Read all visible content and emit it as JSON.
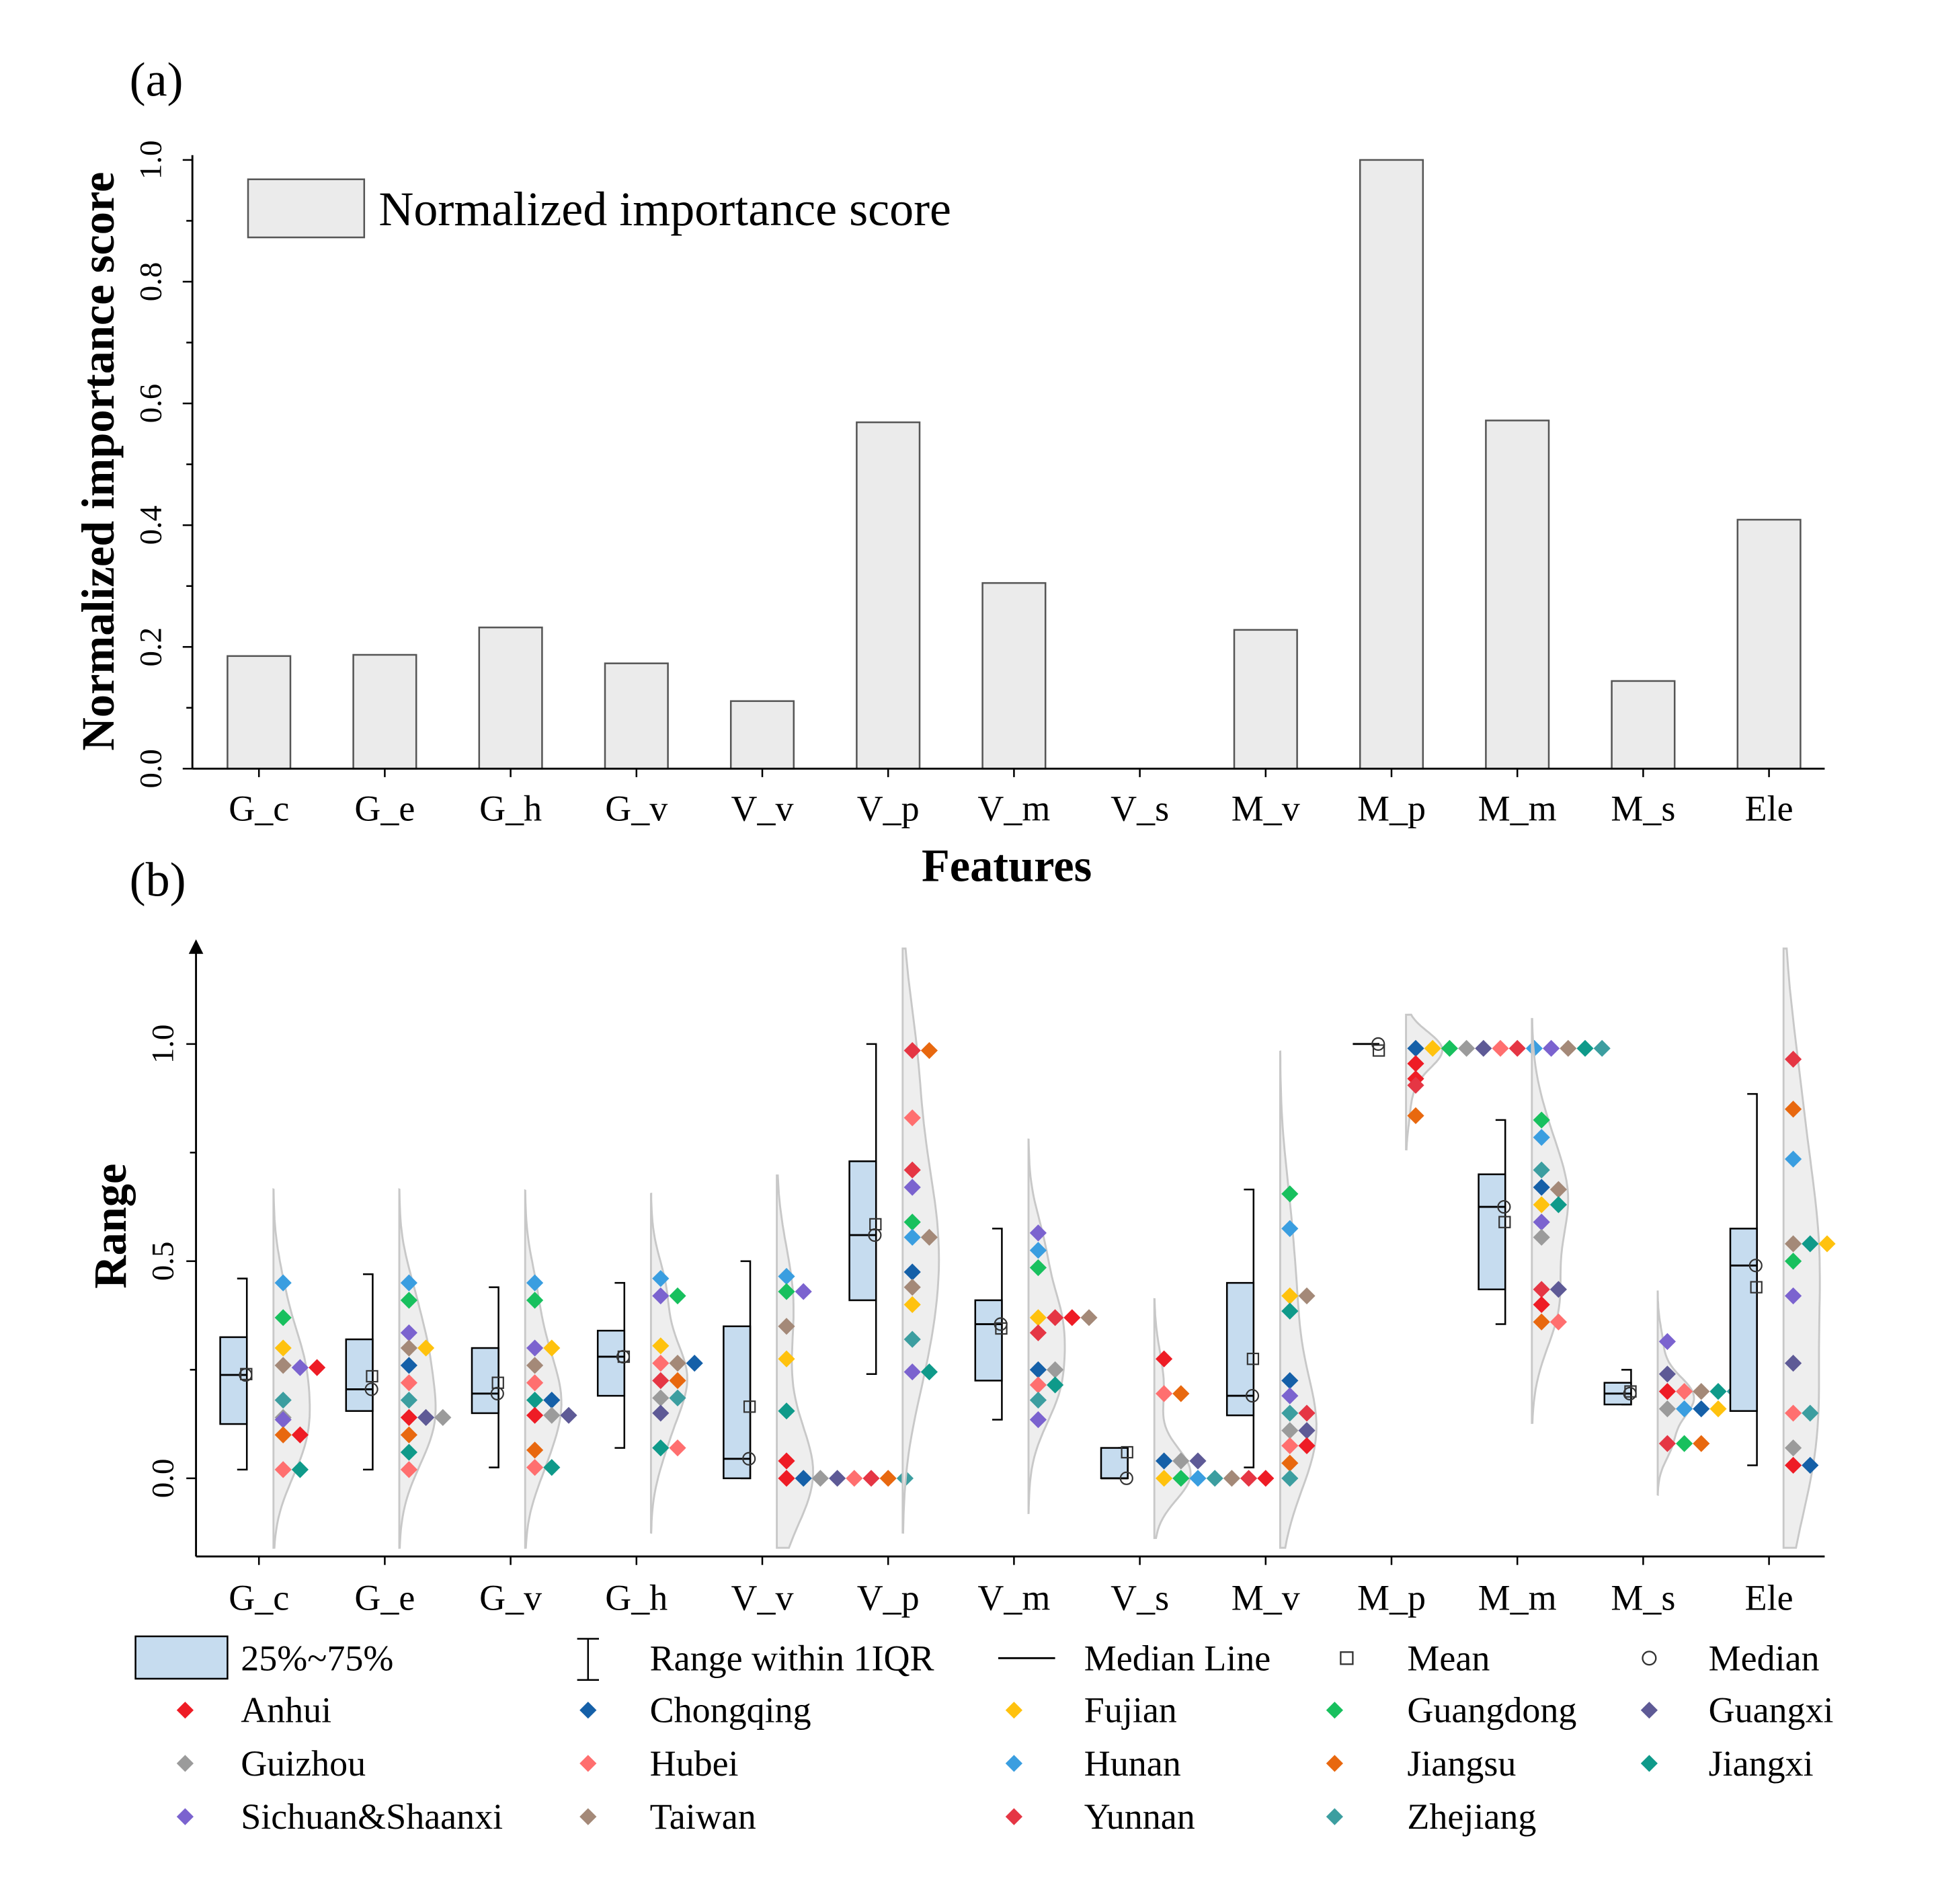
{
  "chart_data": [
    {
      "panel": "(a)",
      "type": "bar",
      "categories": [
        "G_c",
        "G_e",
        "G_h",
        "G_v",
        "V_v",
        "V_p",
        "V_m",
        "V_s",
        "M_v",
        "M_p",
        "M_m",
        "M_s",
        "Ele"
      ],
      "values": [
        0.185,
        0.187,
        0.232,
        0.173,
        0.111,
        0.569,
        0.305,
        0.0,
        0.228,
        1.0,
        0.572,
        0.144,
        0.409
      ],
      "xlabel": "Features",
      "ylabel": "Normalized importance score",
      "ylim": [
        0,
        1.0
      ],
      "yticks": [
        "0.0",
        "0.2",
        "0.4",
        "0.6",
        "0.8",
        "1.0"
      ],
      "legend": "Normalized importance score"
    },
    {
      "panel": "(b)",
      "type": "box",
      "ylabel": "Range",
      "ylim": [
        -0.18,
        1.23
      ],
      "yticks": [
        "0.0",
        "0.5",
        "1.0"
      ],
      "categories": [
        "G_c",
        "G_e",
        "G_v",
        "G_h",
        "V_v",
        "V_p",
        "V_m",
        "V_s",
        "M_v",
        "M_p",
        "M_m",
        "M_s",
        "Ele"
      ],
      "stats": [
        {
          "q1": 0.125,
          "q3": 0.325,
          "median": 0.238,
          "mean": 0.24,
          "wlo": 0.02,
          "whi": 0.46
        },
        {
          "q1": 0.155,
          "q3": 0.32,
          "median": 0.205,
          "mean": 0.235,
          "wlo": 0.02,
          "whi": 0.47
        },
        {
          "q1": 0.15,
          "q3": 0.3,
          "median": 0.195,
          "mean": 0.22,
          "wlo": 0.025,
          "whi": 0.44
        },
        {
          "q1": 0.19,
          "q3": 0.34,
          "median": 0.28,
          "mean": 0.28,
          "wlo": 0.07,
          "whi": 0.45
        },
        {
          "q1": 0.0,
          "q3": 0.35,
          "median": 0.045,
          "mean": 0.165,
          "wlo": 0.0,
          "whi": 0.5
        },
        {
          "q1": 0.41,
          "q3": 0.73,
          "median": 0.56,
          "mean": 0.585,
          "wlo": 0.24,
          "whi": 1.0
        },
        {
          "q1": 0.225,
          "q3": 0.41,
          "median": 0.355,
          "mean": 0.345,
          "wlo": 0.135,
          "whi": 0.575
        },
        {
          "q1": 0.0,
          "q3": 0.07,
          "median": 0.0,
          "mean": 0.06,
          "wlo": 0.0,
          "whi": 0.07
        },
        {
          "q1": 0.145,
          "q3": 0.45,
          "median": 0.19,
          "mean": 0.275,
          "wlo": 0.025,
          "whi": 0.665
        },
        {
          "q1": 1.0,
          "q3": 1.0,
          "median": 1.0,
          "mean": 0.985,
          "wlo": 1.0,
          "whi": 1.0
        },
        {
          "q1": 0.435,
          "q3": 0.7,
          "median": 0.625,
          "mean": 0.59,
          "wlo": 0.355,
          "whi": 0.825
        },
        {
          "q1": 0.17,
          "q3": 0.22,
          "median": 0.195,
          "mean": 0.2,
          "wlo": 0.17,
          "whi": 0.25
        },
        {
          "q1": 0.155,
          "q3": 0.575,
          "median": 0.49,
          "mean": 0.44,
          "wlo": 0.03,
          "whi": 0.885
        }
      ],
      "points": [
        [
          [
            "Hunan",
            0.45
          ],
          [
            "Guangdong",
            0.37
          ],
          [
            "Fujian",
            0.3
          ],
          [
            "Taiwan",
            0.26
          ],
          [
            "Sichuan&Shaanxi",
            0.255
          ],
          [
            "Anhui",
            0.255
          ],
          [
            "Zhejiang",
            0.18
          ],
          [
            "Guizhou",
            0.14
          ],
          [
            "Sichuan&Shaanxi",
            0.135
          ],
          [
            "Jiangsu",
            0.1
          ],
          [
            "Anhui",
            0.1
          ],
          [
            "Hubei",
            0.02
          ],
          [
            "Jiangxi",
            0.02
          ]
        ],
        [
          [
            "Hunan",
            0.45
          ],
          [
            "Guangdong",
            0.41
          ],
          [
            "Sichuan&Shaanxi",
            0.335
          ],
          [
            "Taiwan",
            0.3
          ],
          [
            "Fujian",
            0.3
          ],
          [
            "Chongqing",
            0.26
          ],
          [
            "Hubei",
            0.22
          ],
          [
            "Zhejiang",
            0.18
          ],
          [
            "Anhui",
            0.14
          ],
          [
            "Guangxi",
            0.14
          ],
          [
            "Guizhou",
            0.14
          ],
          [
            "Jiangsu",
            0.1
          ],
          [
            "Jiangxi",
            0.06
          ],
          [
            "Hubei",
            0.02
          ]
        ],
        [
          [
            "Hunan",
            0.45
          ],
          [
            "Guangdong",
            0.41
          ],
          [
            "Sichuan&Shaanxi",
            0.3
          ],
          [
            "Fujian",
            0.3
          ],
          [
            "Taiwan",
            0.26
          ],
          [
            "Hubei",
            0.22
          ],
          [
            "Jiangxi",
            0.18
          ],
          [
            "Chongqing",
            0.18
          ],
          [
            "Anhui",
            0.145
          ],
          [
            "Guizhou",
            0.145
          ],
          [
            "Guangxi",
            0.145
          ],
          [
            "Jiangsu",
            0.065
          ],
          [
            "Hubei",
            0.025
          ],
          [
            "Jiangxi",
            0.025
          ]
        ],
        [
          [
            "Hunan",
            0.46
          ],
          [
            "Sichuan&Shaanxi",
            0.42
          ],
          [
            "Guangdong",
            0.42
          ],
          [
            "Fujian",
            0.305
          ],
          [
            "Hubei",
            0.265
          ],
          [
            "Taiwan",
            0.265
          ],
          [
            "Chongqing",
            0.265
          ],
          [
            "Yunnan",
            0.225
          ],
          [
            "Jiangsu",
            0.225
          ],
          [
            "Guizhou",
            0.185
          ],
          [
            "Zhejiang",
            0.185
          ],
          [
            "Guangxi",
            0.15
          ],
          [
            "Jiangxi",
            0.07
          ],
          [
            "Hubei",
            0.07
          ]
        ],
        [
          [
            "Hunan",
            0.465
          ],
          [
            "Guangdong",
            0.43
          ],
          [
            "Sichuan&Shaanxi",
            0.43
          ],
          [
            "Taiwan",
            0.35
          ],
          [
            "Fujian",
            0.275
          ],
          [
            "Jiangxi",
            0.155
          ],
          [
            "Anhui",
            0.04
          ],
          [
            "Anhui",
            0.0
          ],
          [
            "Chongqing",
            0.0
          ],
          [
            "Guizhou",
            0.0
          ],
          [
            "Guangxi",
            0.0
          ],
          [
            "Hubei",
            0.0
          ],
          [
            "Yunnan",
            0.0
          ],
          [
            "Jiangsu",
            0.0
          ],
          [
            "Zhejiang",
            0.0
          ]
        ],
        [
          [
            "Yunnan",
            0.985
          ],
          [
            "Jiangsu",
            0.985
          ],
          [
            "Hubei",
            0.83
          ],
          [
            "Yunnan",
            0.71
          ],
          [
            "Sichuan&Shaanxi",
            0.67
          ],
          [
            "Guangdong",
            0.59
          ],
          [
            "Hunan",
            0.555
          ],
          [
            "Taiwan",
            0.555
          ],
          [
            "Chongqing",
            0.475
          ],
          [
            "Taiwan",
            0.44
          ],
          [
            "Fujian",
            0.4
          ],
          [
            "Zhejiang",
            0.32
          ],
          [
            "Sichuan&Shaanxi",
            0.245
          ],
          [
            "Jiangxi",
            0.245
          ]
        ],
        [
          [
            "Sichuan&Shaanxi",
            0.565
          ],
          [
            "Hunan",
            0.525
          ],
          [
            "Guangdong",
            0.485
          ],
          [
            "Fujian",
            0.37
          ],
          [
            "Yunnan",
            0.37
          ],
          [
            "Anhui",
            0.37
          ],
          [
            "Taiwan",
            0.37
          ],
          [
            "Yunnan",
            0.335
          ],
          [
            "Chongqing",
            0.25
          ],
          [
            "Guizhou",
            0.25
          ],
          [
            "Hubei",
            0.215
          ],
          [
            "Jiangxi",
            0.215
          ],
          [
            "Zhejiang",
            0.18
          ],
          [
            "Sichuan&Shaanxi",
            0.135
          ]
        ],
        [
          [
            "Anhui",
            0.275
          ],
          [
            "Hubei",
            0.195
          ],
          [
            "Jiangsu",
            0.195
          ],
          [
            "Chongqing",
            0.04
          ],
          [
            "Guizhou",
            0.04
          ],
          [
            "Guangxi",
            0.04
          ],
          [
            "Fujian",
            0.0
          ],
          [
            "Guangdong",
            0.0
          ],
          [
            "Hunan",
            0.0
          ],
          [
            "Zhejiang",
            0.0
          ],
          [
            "Taiwan",
            0.0
          ],
          [
            "Yunnan",
            0.0
          ],
          [
            "Anhui",
            0.0
          ]
        ],
        [
          [
            "Guangdong",
            0.655
          ],
          [
            "Hunan",
            0.575
          ],
          [
            "Fujian",
            0.42
          ],
          [
            "Taiwan",
            0.42
          ],
          [
            "Jiangxi",
            0.385
          ],
          [
            "Chongqing",
            0.225
          ],
          [
            "Sichuan&Shaanxi",
            0.19
          ],
          [
            "Zhejiang",
            0.15
          ],
          [
            "Yunnan",
            0.15
          ],
          [
            "Guizhou",
            0.11
          ],
          [
            "Guangxi",
            0.11
          ],
          [
            "Hubei",
            0.075
          ],
          [
            "Anhui",
            0.075
          ],
          [
            "Jiangsu",
            0.035
          ],
          [
            "Zhejiang",
            0.0
          ]
        ],
        [
          [
            "Chongqing",
            0.99
          ],
          [
            "Fujian",
            0.99
          ],
          [
            "Guangdong",
            0.99
          ],
          [
            "Guizhou",
            0.99
          ],
          [
            "Guangxi",
            0.99
          ],
          [
            "Hubei",
            0.99
          ],
          [
            "Yunnan",
            0.99
          ],
          [
            "Hunan",
            0.99
          ],
          [
            "Sichuan&Shaanxi",
            0.99
          ],
          [
            "Taiwan",
            0.99
          ],
          [
            "Jiangxi",
            0.99
          ],
          [
            "Zhejiang",
            0.99
          ],
          [
            "Anhui",
            0.955
          ],
          [
            "Anhui",
            0.92
          ],
          [
            "Yunnan",
            0.905
          ],
          [
            "Jiangsu",
            0.835
          ]
        ],
        [
          [
            "Guangdong",
            0.825
          ],
          [
            "Hunan",
            0.785
          ],
          [
            "Zhejiang",
            0.71
          ],
          [
            "Chongqing",
            0.67
          ],
          [
            "Taiwan",
            0.665
          ],
          [
            "Fujian",
            0.63
          ],
          [
            "Jiangxi",
            0.63
          ],
          [
            "Sichuan&Shaanxi",
            0.59
          ],
          [
            "Guizhou",
            0.555
          ],
          [
            "Yunnan",
            0.435
          ],
          [
            "Guangxi",
            0.435
          ],
          [
            "Anhui",
            0.4
          ],
          [
            "Jiangsu",
            0.36
          ],
          [
            "Hubei",
            0.36
          ]
        ],
        [
          [
            "Sichuan&Shaanxi",
            0.315
          ],
          [
            "Guangxi",
            0.24
          ],
          [
            "Anhui",
            0.2
          ],
          [
            "Hubei",
            0.2
          ],
          [
            "Taiwan",
            0.2
          ],
          [
            "Jiangxi",
            0.2
          ],
          [
            "Zhejiang",
            0.2
          ],
          [
            "Guizhou",
            0.16
          ],
          [
            "Hunan",
            0.16
          ],
          [
            "Chongqing",
            0.16
          ],
          [
            "Fujian",
            0.16
          ],
          [
            "Yunnan",
            0.08
          ],
          [
            "Guangdong",
            0.08
          ],
          [
            "Jiangsu",
            0.08
          ]
        ],
        [
          [
            "Yunnan",
            0.965
          ],
          [
            "Jiangsu",
            0.85
          ],
          [
            "Hunan",
            0.735
          ],
          [
            "Taiwan",
            0.54
          ],
          [
            "Jiangxi",
            0.54
          ],
          [
            "Fujian",
            0.54
          ],
          [
            "Guangdong",
            0.5
          ],
          [
            "Sichuan&Shaanxi",
            0.42
          ],
          [
            "Guangxi",
            0.265
          ],
          [
            "Hubei",
            0.15
          ],
          [
            "Zhejiang",
            0.15
          ],
          [
            "Guizhou",
            0.07
          ],
          [
            "Anhui",
            0.03
          ],
          [
            "Chongqing",
            0.03
          ]
        ]
      ]
    }
  ],
  "panels": {
    "a_label": "(a)",
    "b_label": "(b)",
    "a_legend": "Normalized importance score",
    "a_xlabel": "Features",
    "a_ylabel": "Normalized importance score",
    "b_ylabel": "Range"
  },
  "legend_b": {
    "iqr": "25%~75%",
    "range": "Range within 1IQR",
    "median_line": "Median Line",
    "mean": "Mean",
    "median": "Median"
  },
  "provinces": [
    {
      "name": "Anhui",
      "color": "#ee1c25"
    },
    {
      "name": "Chongqing",
      "color": "#1560a8"
    },
    {
      "name": "Fujian",
      "color": "#ffc20e"
    },
    {
      "name": "Guangdong",
      "color": "#18c05e"
    },
    {
      "name": "Guangxi",
      "color": "#5e5a96"
    },
    {
      "name": "Guizhou",
      "color": "#9b9b9b"
    },
    {
      "name": "Hubei",
      "color": "#ff6f6f"
    },
    {
      "name": "Hunan",
      "color": "#3a9ee0"
    },
    {
      "name": "Jiangsu",
      "color": "#e8680f"
    },
    {
      "name": "Jiangxi",
      "color": "#0f9a8a"
    },
    {
      "name": "Sichuan&Shaanxi",
      "color": "#7b63cf"
    },
    {
      "name": "Taiwan",
      "color": "#a48978"
    },
    {
      "name": "Yunnan",
      "color": "#e53644"
    },
    {
      "name": "Zhejiang",
      "color": "#3c9ea0"
    }
  ],
  "colors": {
    "bar_fill": "#ebebeb",
    "iqr_fill": "#c6dcef",
    "violin_fill": "#eeeeee",
    "violin_stroke": "#c8c8c8"
  }
}
